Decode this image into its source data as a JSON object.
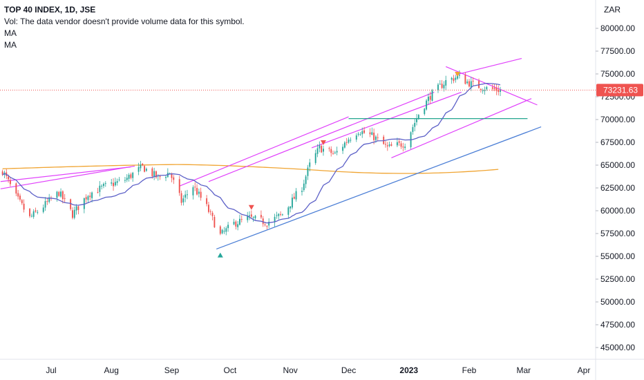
{
  "legend": {
    "title": "TOP 40 INDEX, 1D, JSE",
    "volume_note": "Vol: The data vendor doesn't provide volume data for this symbol.",
    "ma1": "MA",
    "ma2": "MA"
  },
  "chart_data": {
    "type": "candlestick",
    "currency": "ZAR",
    "last_price": "73231.63",
    "ylim": [
      43500,
      81800
    ],
    "y_ticks": [
      "80000.00",
      "77500.00",
      "75000.00",
      "72500.00",
      "70000.00",
      "67500.00",
      "65000.00",
      "62500.00",
      "60000.00",
      "57500.00",
      "55000.00",
      "52500.00",
      "50000.00",
      "47500.00",
      "45000.00"
    ],
    "x_ticks": [
      "Jul",
      "Aug",
      "Sep",
      "Oct",
      "Nov",
      "Dec",
      "2023",
      "Feb",
      "Mar",
      "Apr"
    ],
    "x_tick_dates": [
      "2022-07-01",
      "2022-08-01",
      "2022-09-01",
      "2022-10-01",
      "2022-11-01",
      "2022-12-01",
      "2023-01-01",
      "2023-02-01",
      "2023-03-01",
      "2023-04-01"
    ],
    "close_keypoints": [
      [
        "2022-06-06",
        64400
      ],
      [
        "2022-06-13",
        61500
      ],
      [
        "2022-06-20",
        59200
      ],
      [
        "2022-06-27",
        60500
      ],
      [
        "2022-07-05",
        62000
      ],
      [
        "2022-07-12",
        59600
      ],
      [
        "2022-07-20",
        61800
      ],
      [
        "2022-07-28",
        62600
      ],
      [
        "2022-08-08",
        63400
      ],
      [
        "2022-08-17",
        64800
      ],
      [
        "2022-08-25",
        63600
      ],
      [
        "2022-08-31",
        64200
      ],
      [
        "2022-09-06",
        61000
      ],
      [
        "2022-09-12",
        62700
      ],
      [
        "2022-09-19",
        60400
      ],
      [
        "2022-09-26",
        57300
      ],
      [
        "2022-10-03",
        58600
      ],
      [
        "2022-10-11",
        59200
      ],
      [
        "2022-10-20",
        58700
      ],
      [
        "2022-10-28",
        59600
      ],
      [
        "2022-11-07",
        62600
      ],
      [
        "2022-11-11",
        65000
      ],
      [
        "2022-11-16",
        66900
      ],
      [
        "2022-11-24",
        66200
      ],
      [
        "2022-12-01",
        67900
      ],
      [
        "2022-12-06",
        68800
      ],
      [
        "2022-12-14",
        68100
      ],
      [
        "2022-12-21",
        66900
      ],
      [
        "2022-12-30",
        67400
      ],
      [
        "2023-01-06",
        70600
      ],
      [
        "2023-01-12",
        72600
      ],
      [
        "2023-01-20",
        74200
      ],
      [
        "2023-01-26",
        74700
      ],
      [
        "2023-02-02",
        73900
      ],
      [
        "2023-02-10",
        73400
      ],
      [
        "2023-02-17",
        73231
      ]
    ],
    "series": [
      {
        "name": "MA",
        "color": "#5b5fc7",
        "period": 20
      },
      {
        "name": "MA",
        "color": "#f0a431",
        "period": 200
      }
    ],
    "up_color": "#26a69a",
    "down_color": "#ef5350",
    "drawings": {
      "magenta_lines": [
        [
          [
            "2022-06-05",
            63200
          ],
          [
            "2022-08-11",
            64800
          ]
        ],
        [
          [
            "2022-06-05",
            62400
          ],
          [
            "2022-08-13",
            64900
          ]
        ],
        [
          [
            "2022-09-05",
            62700
          ],
          [
            "2022-12-01",
            70300
          ]
        ],
        [
          [
            "2022-09-20",
            63200
          ],
          [
            "2023-01-14",
            73000
          ]
        ],
        [
          [
            "2022-11-12",
            66900
          ],
          [
            "2023-01-28",
            73000
          ]
        ],
        [
          [
            "2022-12-23",
            65800
          ],
          [
            "2023-03-05",
            72300
          ]
        ],
        [
          [
            "2023-01-20",
            75800
          ],
          [
            "2023-03-08",
            71600
          ]
        ],
        [
          [
            "2023-01-25",
            74900
          ],
          [
            "2023-02-28",
            76700
          ]
        ]
      ],
      "teal_line": [
        [
          "2022-12-01",
          70100
        ],
        [
          "2023-03-03",
          70100
        ]
      ],
      "blue_trendline": [
        [
          "2022-09-24",
          55800
        ],
        [
          "2023-03-10",
          69200
        ]
      ],
      "markers": [
        {
          "date": "2022-09-26",
          "price": 55100,
          "shape": "up-triangle",
          "color": "#26a69a"
        },
        {
          "date": "2022-10-12",
          "price": 60400,
          "shape": "down-triangle",
          "color": "#ef5350"
        },
        {
          "date": "2022-11-18",
          "price": 67500,
          "shape": "down-triangle",
          "color": "#ef5350"
        },
        {
          "date": "2023-01-26",
          "price": 75000,
          "shape": "down-triangle",
          "color": "#f0a431"
        }
      ]
    }
  }
}
